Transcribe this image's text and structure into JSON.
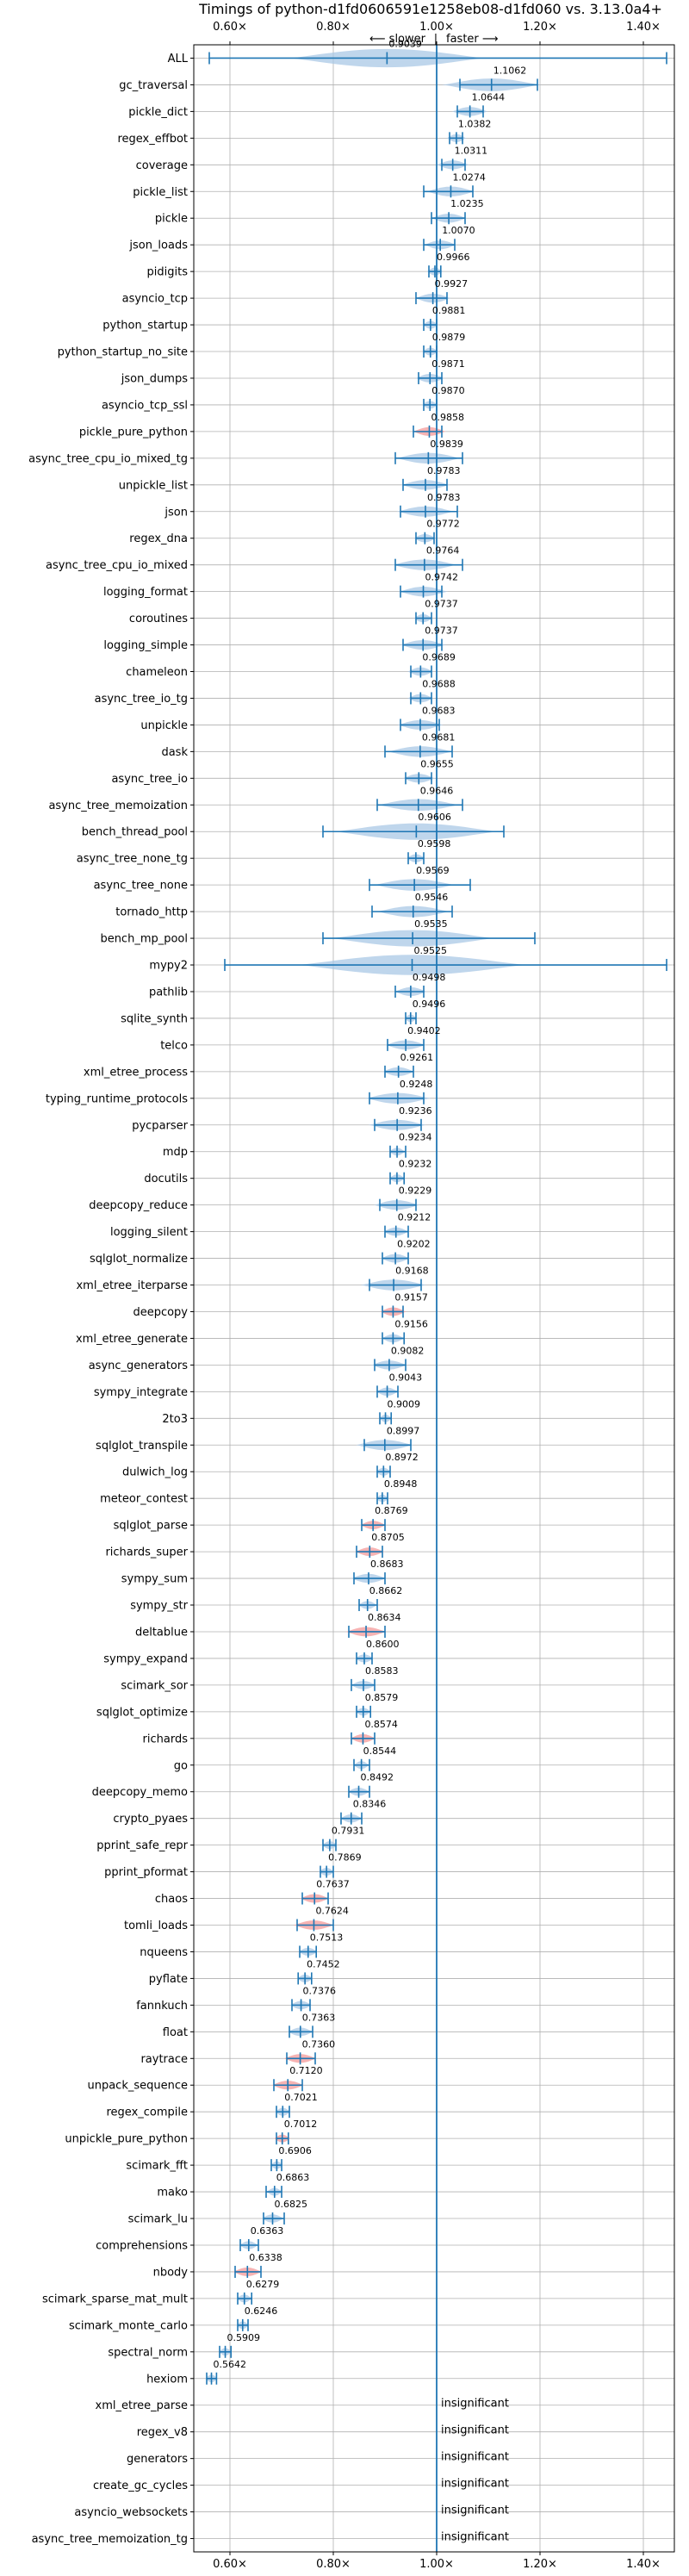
{
  "chart_data": {
    "type": "violin",
    "title": "Timings of python-d1fd0606591e1258eb08-d1fd060 vs. 3.13.0a4+",
    "direction_label": {
      "slower": "⟵ slower",
      "separator": "|",
      "faster": "faster ⟶"
    },
    "xlim": [
      0.53,
      1.46
    ],
    "reference_x": 1.0,
    "x_ticks": [
      0.6,
      0.8,
      1.0,
      1.2,
      1.4
    ],
    "x_tick_labels": [
      "0.60×",
      "0.80×",
      "1.00×",
      "1.20×",
      "1.40×"
    ],
    "grid": true,
    "colors": {
      "violin": "#a9c8e6",
      "line": "#1f77b4",
      "highlight": "#f4a6a6",
      "grid": "#b0b0b0"
    },
    "insignificant_text": "insignificant",
    "benchmarks": [
      {
        "name": "ALL",
        "value": 0.9039,
        "label": "0.9039",
        "lo": 0.56,
        "hi": 1.445,
        "w": 0.12
      },
      {
        "name": "gc_traversal",
        "value": 1.1062,
        "label": "1.1062",
        "lo": 1.045,
        "hi": 1.195,
        "w": 0.06
      },
      {
        "name": "pickle_dict",
        "value": 1.0644,
        "label": "1.0644",
        "lo": 1.04,
        "hi": 1.09,
        "w": 0.022
      },
      {
        "name": "regex_effbot",
        "value": 1.0382,
        "label": "1.0382",
        "lo": 1.025,
        "hi": 1.05,
        "w": 0.012
      },
      {
        "name": "coverage",
        "value": 1.0311,
        "label": "1.0311",
        "lo": 1.01,
        "hi": 1.055,
        "w": 0.02
      },
      {
        "name": "pickle_list",
        "value": 1.0274,
        "label": "1.0274",
        "lo": 0.975,
        "hi": 1.07,
        "w": 0.03
      },
      {
        "name": "pickle",
        "value": 1.0235,
        "label": "1.0235",
        "lo": 0.99,
        "hi": 1.055,
        "w": 0.022
      },
      {
        "name": "json_loads",
        "value": 1.007,
        "label": "1.0070",
        "lo": 0.975,
        "hi": 1.035,
        "w": 0.02
      },
      {
        "name": "pidigits",
        "value": 0.9966,
        "label": "0.9966",
        "lo": 0.985,
        "hi": 1.008,
        "w": 0.01
      },
      {
        "name": "asyncio_tcp",
        "value": 0.9927,
        "label": "0.9927",
        "lo": 0.96,
        "hi": 1.02,
        "w": 0.022
      },
      {
        "name": "python_startup",
        "value": 0.9881,
        "label": "0.9881",
        "lo": 0.975,
        "hi": 1.0,
        "w": 0.01
      },
      {
        "name": "python_startup_no_site",
        "value": 0.9879,
        "label": "0.9879",
        "lo": 0.975,
        "hi": 1.0,
        "w": 0.01
      },
      {
        "name": "json_dumps",
        "value": 0.9871,
        "label": "0.9871",
        "lo": 0.965,
        "hi": 1.01,
        "w": 0.018
      },
      {
        "name": "asyncio_tcp_ssl",
        "value": 0.987,
        "label": "0.9870",
        "lo": 0.975,
        "hi": 1.0,
        "w": 0.01
      },
      {
        "name": "pickle_pure_python",
        "value": 0.9858,
        "label": "0.9858",
        "lo": 0.955,
        "hi": 1.01,
        "w": 0.02,
        "highlight": true
      },
      {
        "name": "async_tree_cpu_io_mixed_tg",
        "value": 0.9839,
        "label": "0.9839",
        "lo": 0.92,
        "hi": 1.05,
        "w": 0.04
      },
      {
        "name": "unpickle_list",
        "value": 0.9783,
        "label": "0.9783",
        "lo": 0.935,
        "hi": 1.02,
        "w": 0.03
      },
      {
        "name": "json",
        "value": 0.9783,
        "label": "0.9783",
        "lo": 0.93,
        "hi": 1.04,
        "w": 0.035
      },
      {
        "name": "regex_dna",
        "value": 0.9772,
        "label": "0.9772",
        "lo": 0.96,
        "hi": 0.995,
        "w": 0.014
      },
      {
        "name": "async_tree_cpu_io_mixed",
        "value": 0.9764,
        "label": "0.9764",
        "lo": 0.92,
        "hi": 1.05,
        "w": 0.04
      },
      {
        "name": "logging_format",
        "value": 0.9742,
        "label": "0.9742",
        "lo": 0.93,
        "hi": 1.01,
        "w": 0.03
      },
      {
        "name": "coroutines",
        "value": 0.9737,
        "label": "0.9737",
        "lo": 0.96,
        "hi": 0.99,
        "w": 0.012
      },
      {
        "name": "logging_simple",
        "value": 0.9737,
        "label": "0.9737",
        "lo": 0.935,
        "hi": 1.01,
        "w": 0.028
      },
      {
        "name": "chameleon",
        "value": 0.9689,
        "label": "0.9689",
        "lo": 0.95,
        "hi": 0.99,
        "w": 0.016
      },
      {
        "name": "async_tree_io_tg",
        "value": 0.9688,
        "label": "0.9688",
        "lo": 0.95,
        "hi": 0.99,
        "w": 0.016
      },
      {
        "name": "unpickle",
        "value": 0.9683,
        "label": "0.9683",
        "lo": 0.93,
        "hi": 1.005,
        "w": 0.028
      },
      {
        "name": "dask",
        "value": 0.9681,
        "label": "0.9681",
        "lo": 0.9,
        "hi": 1.03,
        "w": 0.04
      },
      {
        "name": "async_tree_io",
        "value": 0.9655,
        "label": "0.9655",
        "lo": 0.94,
        "hi": 0.99,
        "w": 0.02
      },
      {
        "name": "async_tree_memoization",
        "value": 0.9646,
        "label": "0.9646",
        "lo": 0.885,
        "hi": 1.05,
        "w": 0.05
      },
      {
        "name": "bench_thread_pool",
        "value": 0.9606,
        "label": "0.9606",
        "lo": 0.78,
        "hi": 1.13,
        "w": 0.1
      },
      {
        "name": "async_tree_none_tg",
        "value": 0.9598,
        "label": "0.9598",
        "lo": 0.945,
        "hi": 0.975,
        "w": 0.012
      },
      {
        "name": "async_tree_none",
        "value": 0.9569,
        "label": "0.9569",
        "lo": 0.87,
        "hi": 1.065,
        "w": 0.05
      },
      {
        "name": "tornado_http",
        "value": 0.9546,
        "label": "0.9546",
        "lo": 0.875,
        "hi": 1.03,
        "w": 0.045
      },
      {
        "name": "bench_mp_pool",
        "value": 0.9535,
        "label": "0.9535",
        "lo": 0.78,
        "hi": 1.19,
        "w": 0.1
      },
      {
        "name": "mypy2",
        "value": 0.9525,
        "label": "0.9525",
        "lo": 0.59,
        "hi": 1.445,
        "w": 0.14
      },
      {
        "name": "pathlib",
        "value": 0.9498,
        "label": "0.9498",
        "lo": 0.92,
        "hi": 0.975,
        "w": 0.02
      },
      {
        "name": "sqlite_synth",
        "value": 0.9496,
        "label": "0.9496",
        "lo": 0.94,
        "hi": 0.96,
        "w": 0.008
      },
      {
        "name": "telco",
        "value": 0.9402,
        "label": "0.9402",
        "lo": 0.905,
        "hi": 0.975,
        "w": 0.025
      },
      {
        "name": "xml_etree_process",
        "value": 0.9261,
        "label": "0.9261",
        "lo": 0.9,
        "hi": 0.955,
        "w": 0.02
      },
      {
        "name": "typing_runtime_protocols",
        "value": 0.9248,
        "label": "0.9248",
        "lo": 0.87,
        "hi": 0.975,
        "w": 0.04
      },
      {
        "name": "pycparser",
        "value": 0.9236,
        "label": "0.9236",
        "lo": 0.88,
        "hi": 0.97,
        "w": 0.035
      },
      {
        "name": "mdp",
        "value": 0.9234,
        "label": "0.9234",
        "lo": 0.91,
        "hi": 0.94,
        "w": 0.01
      },
      {
        "name": "docutils",
        "value": 0.9232,
        "label": "0.9232",
        "lo": 0.91,
        "hi": 0.937,
        "w": 0.01
      },
      {
        "name": "deepcopy_reduce",
        "value": 0.9229,
        "label": "0.9229",
        "lo": 0.89,
        "hi": 0.96,
        "w": 0.028
      },
      {
        "name": "logging_silent",
        "value": 0.9212,
        "label": "0.9212",
        "lo": 0.9,
        "hi": 0.945,
        "w": 0.016
      },
      {
        "name": "sqlglot_normalize",
        "value": 0.9202,
        "label": "0.9202",
        "lo": 0.895,
        "hi": 0.945,
        "w": 0.018
      },
      {
        "name": "xml_etree_iterparse",
        "value": 0.9168,
        "label": "0.9168",
        "lo": 0.87,
        "hi": 0.97,
        "w": 0.04
      },
      {
        "name": "deepcopy",
        "value": 0.9157,
        "label": "0.9157",
        "lo": 0.895,
        "hi": 0.935,
        "w": 0.016,
        "highlight": true
      },
      {
        "name": "xml_etree_generate",
        "value": 0.9156,
        "label": "0.9156",
        "lo": 0.895,
        "hi": 0.937,
        "w": 0.014
      },
      {
        "name": "async_generators",
        "value": 0.9082,
        "label": "0.9082",
        "lo": 0.88,
        "hi": 0.94,
        "w": 0.022
      },
      {
        "name": "sympy_integrate",
        "value": 0.9043,
        "label": "0.9043",
        "lo": 0.885,
        "hi": 0.925,
        "w": 0.014
      },
      {
        "name": "2to3",
        "value": 0.9009,
        "label": "0.9009",
        "lo": 0.89,
        "hi": 0.912,
        "w": 0.008
      },
      {
        "name": "sqlglot_transpile",
        "value": 0.8997,
        "label": "0.8997",
        "lo": 0.86,
        "hi": 0.95,
        "w": 0.035
      },
      {
        "name": "dulwich_log",
        "value": 0.8972,
        "label": "0.8972",
        "lo": 0.885,
        "hi": 0.91,
        "w": 0.01
      },
      {
        "name": "meteor_contest",
        "value": 0.8948,
        "label": "0.8948",
        "lo": 0.885,
        "hi": 0.905,
        "w": 0.008
      },
      {
        "name": "sqlglot_parse",
        "value": 0.8769,
        "label": "0.8769",
        "lo": 0.855,
        "hi": 0.9,
        "w": 0.016,
        "highlight": true
      },
      {
        "name": "richards_super",
        "value": 0.8705,
        "label": "0.8705",
        "lo": 0.845,
        "hi": 0.895,
        "w": 0.018,
        "highlight": true
      },
      {
        "name": "sympy_sum",
        "value": 0.8683,
        "label": "0.8683",
        "lo": 0.84,
        "hi": 0.9,
        "w": 0.022
      },
      {
        "name": "sympy_str",
        "value": 0.8662,
        "label": "0.8662",
        "lo": 0.85,
        "hi": 0.885,
        "w": 0.012
      },
      {
        "name": "deltablue",
        "value": 0.8634,
        "label": "0.8634",
        "lo": 0.83,
        "hi": 0.9,
        "w": 0.025,
        "highlight": true
      },
      {
        "name": "sympy_expand",
        "value": 0.86,
        "label": "0.8600",
        "lo": 0.845,
        "hi": 0.875,
        "w": 0.012
      },
      {
        "name": "scimark_sor",
        "value": 0.8583,
        "label": "0.8583",
        "lo": 0.835,
        "hi": 0.88,
        "w": 0.016
      },
      {
        "name": "sqlglot_optimize",
        "value": 0.8579,
        "label": "0.8579",
        "lo": 0.845,
        "hi": 0.872,
        "w": 0.01
      },
      {
        "name": "richards",
        "value": 0.8574,
        "label": "0.8574",
        "lo": 0.835,
        "hi": 0.88,
        "w": 0.016,
        "highlight": true
      },
      {
        "name": "go",
        "value": 0.8544,
        "label": "0.8544",
        "lo": 0.84,
        "hi": 0.87,
        "w": 0.01
      },
      {
        "name": "deepcopy_memo",
        "value": 0.8492,
        "label": "0.8492",
        "lo": 0.83,
        "hi": 0.87,
        "w": 0.014
      },
      {
        "name": "crypto_pyaes",
        "value": 0.8346,
        "label": "0.8346",
        "lo": 0.815,
        "hi": 0.855,
        "w": 0.014
      },
      {
        "name": "pprint_safe_repr",
        "value": 0.7931,
        "label": "0.7931",
        "lo": 0.78,
        "hi": 0.805,
        "w": 0.01
      },
      {
        "name": "pprint_pformat",
        "value": 0.7869,
        "label": "0.7869",
        "lo": 0.775,
        "hi": 0.8,
        "w": 0.01
      },
      {
        "name": "chaos",
        "value": 0.7637,
        "label": "0.7637",
        "lo": 0.74,
        "hi": 0.79,
        "w": 0.018,
        "highlight": true
      },
      {
        "name": "tomli_loads",
        "value": 0.7624,
        "label": "0.7624",
        "lo": 0.73,
        "hi": 0.8,
        "w": 0.025,
        "highlight": true
      },
      {
        "name": "nqueens",
        "value": 0.7513,
        "label": "0.7513",
        "lo": 0.735,
        "hi": 0.767,
        "w": 0.012
      },
      {
        "name": "pyflate",
        "value": 0.7452,
        "label": "0.7452",
        "lo": 0.732,
        "hi": 0.758,
        "w": 0.01
      },
      {
        "name": "fannkuch",
        "value": 0.7376,
        "label": "0.7376",
        "lo": 0.72,
        "hi": 0.755,
        "w": 0.014
      },
      {
        "name": "float",
        "value": 0.7363,
        "label": "0.7363",
        "lo": 0.715,
        "hi": 0.76,
        "w": 0.016
      },
      {
        "name": "raytrace",
        "value": 0.736,
        "label": "0.7360",
        "lo": 0.71,
        "hi": 0.765,
        "w": 0.02,
        "highlight": true
      },
      {
        "name": "unpack_sequence",
        "value": 0.712,
        "label": "0.7120",
        "lo": 0.685,
        "hi": 0.74,
        "w": 0.02,
        "highlight": true
      },
      {
        "name": "regex_compile",
        "value": 0.7021,
        "label": "0.7021",
        "lo": 0.69,
        "hi": 0.715,
        "w": 0.01
      },
      {
        "name": "unpickle_pure_python",
        "value": 0.7012,
        "label": "0.7012",
        "lo": 0.69,
        "hi": 0.713,
        "w": 0.01,
        "highlight": true
      },
      {
        "name": "scimark_fft",
        "value": 0.6906,
        "label": "0.6906",
        "lo": 0.68,
        "hi": 0.7,
        "w": 0.008
      },
      {
        "name": "mako",
        "value": 0.6863,
        "label": "0.6863",
        "lo": 0.67,
        "hi": 0.7,
        "w": 0.01
      },
      {
        "name": "scimark_lu",
        "value": 0.6825,
        "label": "0.6825",
        "lo": 0.665,
        "hi": 0.705,
        "w": 0.014
      },
      {
        "name": "comprehensions",
        "value": 0.6363,
        "label": "0.6363",
        "lo": 0.62,
        "hi": 0.655,
        "w": 0.012
      },
      {
        "name": "nbody",
        "value": 0.6338,
        "label": "0.6338",
        "lo": 0.61,
        "hi": 0.66,
        "w": 0.018,
        "highlight": true
      },
      {
        "name": "scimark_sparse_mat_mult",
        "value": 0.6279,
        "label": "0.6279",
        "lo": 0.615,
        "hi": 0.642,
        "w": 0.01
      },
      {
        "name": "scimark_monte_carlo",
        "value": 0.6246,
        "label": "0.6246",
        "lo": 0.615,
        "hi": 0.635,
        "w": 0.008
      },
      {
        "name": "spectral_norm",
        "value": 0.5909,
        "label": "0.5909",
        "lo": 0.58,
        "hi": 0.602,
        "w": 0.008
      },
      {
        "name": "hexiom",
        "value": 0.5642,
        "label": "0.5642",
        "lo": 0.555,
        "hi": 0.574,
        "w": 0.008
      },
      {
        "name": "xml_etree_parse",
        "insignificant": true
      },
      {
        "name": "regex_v8",
        "insignificant": true
      },
      {
        "name": "generators",
        "insignificant": true
      },
      {
        "name": "create_gc_cycles",
        "insignificant": true
      },
      {
        "name": "asyncio_websockets",
        "insignificant": true
      },
      {
        "name": "async_tree_memoization_tg",
        "insignificant": true
      }
    ]
  }
}
